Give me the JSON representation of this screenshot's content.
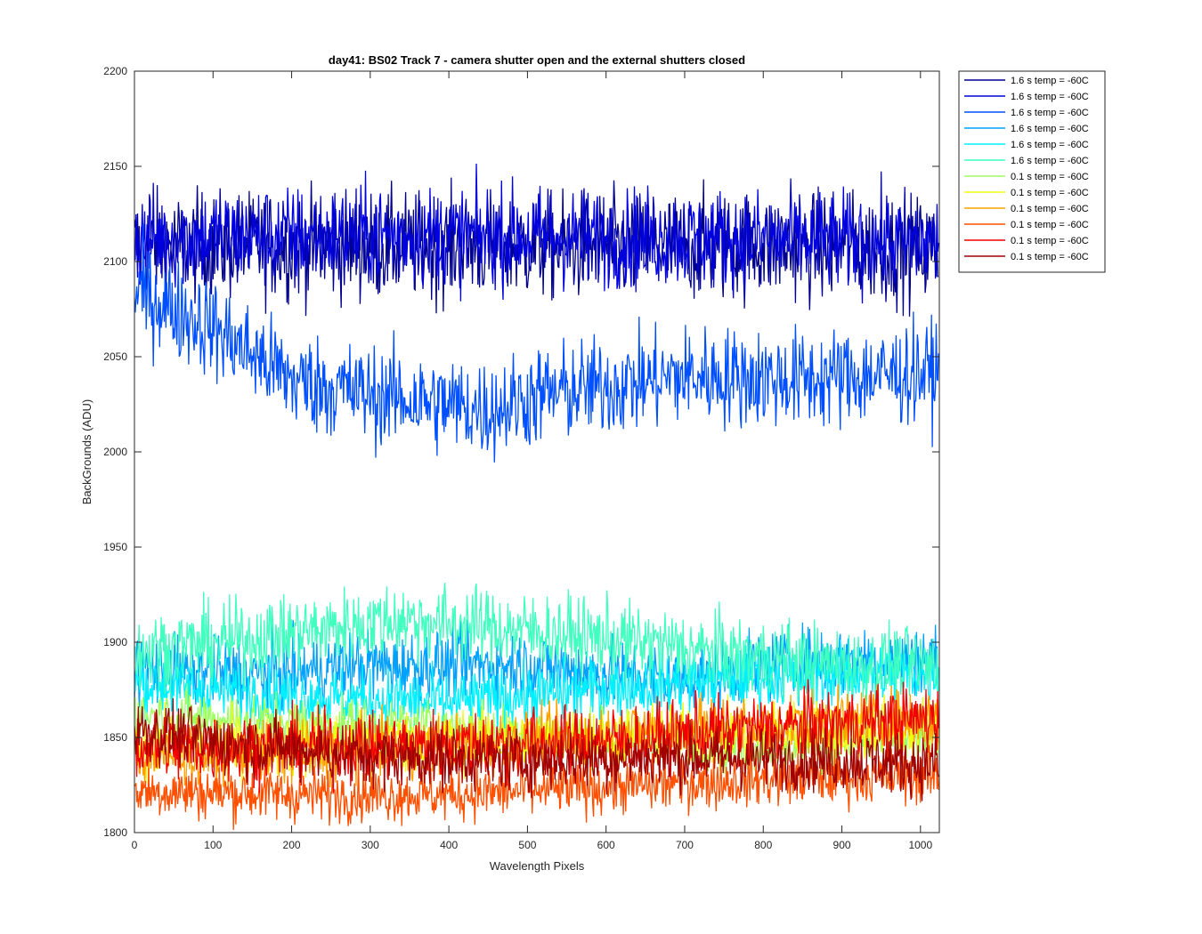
{
  "chart_data": {
    "type": "line",
    "title": "day41: BS02  Track 7 - camera shutter open and the external shutters closed",
    "xlabel": "Wavelength Pixels",
    "ylabel": "BackGrounds (ADU)",
    "xlim": [
      0,
      1024
    ],
    "ylim": [
      1800,
      2200
    ],
    "xticks": [
      0,
      100,
      200,
      300,
      400,
      500,
      600,
      700,
      800,
      900,
      1000
    ],
    "yticks": [
      1800,
      1850,
      1900,
      1950,
      2000,
      2050,
      2100,
      2150,
      2200
    ],
    "grid": false,
    "legend_position": "outside-top-right",
    "n_points": 1024,
    "series": [
      {
        "name": "1.6 s temp = -60C",
        "color": "#00008f",
        "profile": [
          [
            0,
            2108
          ],
          [
            256,
            2108
          ],
          [
            512,
            2108
          ],
          [
            768,
            2108
          ],
          [
            1024,
            2106
          ]
        ],
        "noise": 14
      },
      {
        "name": "1.6 s temp = -60C",
        "color": "#0000df",
        "profile": [
          [
            0,
            2112
          ],
          [
            256,
            2114
          ],
          [
            512,
            2113
          ],
          [
            768,
            2112
          ],
          [
            1024,
            2110
          ]
        ],
        "noise": 13
      },
      {
        "name": "1.6 s temp = -60C",
        "color": "#0050ff",
        "profile": [
          [
            0,
            2085
          ],
          [
            100,
            2065
          ],
          [
            200,
            2038
          ],
          [
            300,
            2030
          ],
          [
            450,
            2022
          ],
          [
            520,
            2030
          ],
          [
            700,
            2040
          ],
          [
            850,
            2038
          ],
          [
            1024,
            2042
          ]
        ],
        "noise": 13
      },
      {
        "name": "1.6 s temp = -60C",
        "color": "#00a0ff",
        "profile": [
          [
            0,
            1887
          ],
          [
            150,
            1883
          ],
          [
            300,
            1888
          ],
          [
            500,
            1888
          ],
          [
            700,
            1880
          ],
          [
            850,
            1890
          ],
          [
            1024,
            1892
          ]
        ],
        "noise": 9
      },
      {
        "name": "1.6 s temp = -60C",
        "color": "#00f0ff",
        "profile": [
          [
            0,
            1878
          ],
          [
            200,
            1872
          ],
          [
            400,
            1868
          ],
          [
            600,
            1876
          ],
          [
            800,
            1882
          ],
          [
            1024,
            1884
          ]
        ],
        "noise": 8
      },
      {
        "name": "1.6 s temp = -60C",
        "color": "#40ffbf",
        "profile": [
          [
            0,
            1895
          ],
          [
            150,
            1902
          ],
          [
            340,
            1912
          ],
          [
            450,
            1908
          ],
          [
            600,
            1902
          ],
          [
            750,
            1894
          ],
          [
            900,
            1888
          ],
          [
            1024,
            1888
          ]
        ],
        "noise": 10
      },
      {
        "name": "0.1 s temp = -60C",
        "color": "#9fff60",
        "profile": [
          [
            0,
            1862
          ],
          [
            200,
            1858
          ],
          [
            400,
            1855
          ],
          [
            600,
            1850
          ],
          [
            800,
            1845
          ],
          [
            1024,
            1848
          ]
        ],
        "noise": 7
      },
      {
        "name": "0.1 s temp = -60C",
        "color": "#efff10",
        "profile": [
          [
            0,
            1846
          ],
          [
            200,
            1846
          ],
          [
            400,
            1848
          ],
          [
            600,
            1850
          ],
          [
            800,
            1852
          ],
          [
            1024,
            1856
          ]
        ],
        "noise": 8
      },
      {
        "name": "0.1 s temp = -60C",
        "color": "#ffa000",
        "profile": [
          [
            0,
            1840
          ],
          [
            250,
            1842
          ],
          [
            500,
            1848
          ],
          [
            750,
            1856
          ],
          [
            1024,
            1860
          ]
        ],
        "noise": 8
      },
      {
        "name": "0.1 s temp = -60C",
        "color": "#ff5000",
        "profile": [
          [
            0,
            1822
          ],
          [
            200,
            1820
          ],
          [
            400,
            1820
          ],
          [
            600,
            1824
          ],
          [
            800,
            1828
          ],
          [
            1024,
            1830
          ]
        ],
        "noise": 7
      },
      {
        "name": "0.1 s temp = -60C",
        "color": "#f00000",
        "profile": [
          [
            0,
            1845
          ],
          [
            200,
            1845
          ],
          [
            400,
            1846
          ],
          [
            600,
            1848
          ],
          [
            800,
            1855
          ],
          [
            1024,
            1860
          ]
        ],
        "noise": 9
      },
      {
        "name": "0.1 s temp = -60C",
        "color": "#9f0000",
        "profile": [
          [
            0,
            1855
          ],
          [
            100,
            1848
          ],
          [
            300,
            1840
          ],
          [
            500,
            1838
          ],
          [
            700,
            1840
          ],
          [
            900,
            1838
          ],
          [
            1024,
            1836
          ]
        ],
        "noise": 8
      }
    ]
  }
}
